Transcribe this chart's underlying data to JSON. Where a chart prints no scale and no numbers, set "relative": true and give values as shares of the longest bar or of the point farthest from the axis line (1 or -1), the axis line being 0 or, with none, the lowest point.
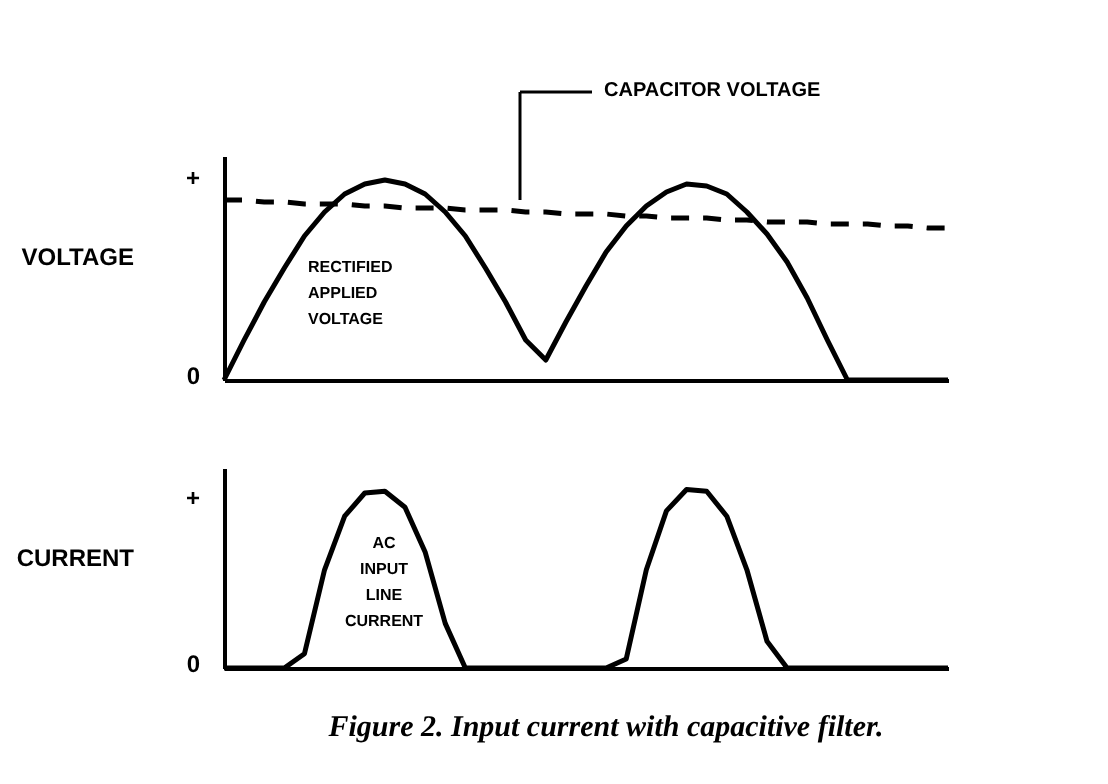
{
  "chart_data": [
    {
      "type": "line",
      "relative": true,
      "ylabel": "VOLTAGE",
      "categories": [
        null,
        null,
        null,
        null,
        null,
        null,
        null,
        null,
        null,
        null,
        null,
        null,
        null,
        null,
        null,
        null,
        null,
        null,
        null,
        null,
        null,
        null,
        null,
        null,
        null,
        null,
        null,
        null,
        null,
        null,
        null,
        null,
        null,
        null,
        null,
        null,
        null
      ],
      "series": [
        {
          "color": "#000000",
          "line_style": "solid",
          "values": [
            0,
            0.2,
            0.39,
            0.56,
            0.72,
            0.84,
            0.93,
            0.98,
            1.0,
            0.98,
            0.93,
            0.84,
            0.72,
            0.56,
            0.39,
            0.2,
            0.1,
            0.29,
            0.47,
            0.64,
            0.77,
            0.87,
            0.94,
            0.98,
            0.97,
            0.93,
            0.84,
            0.73,
            0.59,
            0.41,
            0.2,
            0,
            0,
            0,
            0,
            0,
            0
          ]
        },
        {
          "color": "#000000",
          "line_style": "dashed",
          "values": [
            0.9,
            0.9,
            0.89,
            0.89,
            0.88,
            0.88,
            0.88,
            0.87,
            0.87,
            0.86,
            0.86,
            0.86,
            0.85,
            0.85,
            0.85,
            0.84,
            0.84,
            0.83,
            0.83,
            0.83,
            0.82,
            0.82,
            0.81,
            0.81,
            0.81,
            0.8,
            0.8,
            0.79,
            0.79,
            0.79,
            0.78,
            0.78,
            0.78,
            0.77,
            0.77,
            0.76,
            0.76
          ]
        }
      ],
      "annotations": [
        "CAPACITOR VOLTAGE",
        "RECTIFIED APPLIED VOLTAGE",
        "+",
        "0"
      ]
    },
    {
      "type": "line",
      "relative": true,
      "ylabel": "CURRENT",
      "categories": [
        null,
        null,
        null,
        null,
        null,
        null,
        null,
        null,
        null,
        null,
        null,
        null,
        null,
        null,
        null,
        null,
        null,
        null,
        null,
        null,
        null,
        null,
        null,
        null,
        null,
        null,
        null,
        null,
        null,
        null,
        null,
        null,
        null,
        null,
        null,
        null,
        null
      ],
      "series": [
        {
          "color": "#000000",
          "line_style": "solid",
          "values": [
            0,
            0,
            0,
            0,
            0.08,
            0.55,
            0.85,
            0.98,
            0.99,
            0.9,
            0.65,
            0.25,
            0,
            0,
            0,
            0,
            0,
            0,
            0,
            0,
            0.05,
            0.55,
            0.88,
            1.0,
            0.99,
            0.85,
            0.55,
            0.15,
            0,
            0,
            0,
            0,
            0,
            0,
            0,
            0,
            0
          ]
        }
      ],
      "annotations": [
        "AC INPUT LINE CURRENT",
        "+",
        "0",
        "Figure 2. Input current with capacitive filter."
      ]
    }
  ]
}
